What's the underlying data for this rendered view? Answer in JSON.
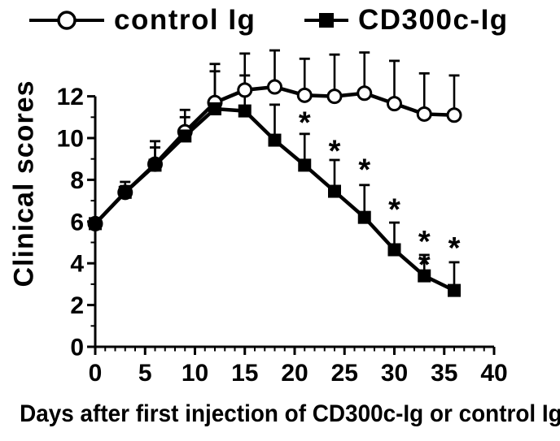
{
  "figure": {
    "background_color": "#ffffff",
    "ink_color": "#000000"
  },
  "legend": {
    "items": [
      {
        "label": "control Ig",
        "marker": "open-circle"
      },
      {
        "label": "CD300c-Ig",
        "marker": "filled-square"
      }
    ]
  },
  "chart_data": {
    "type": "line",
    "title": "",
    "xlabel": "Days after first injection of CD300c-Ig or control Ig",
    "ylabel": "Clinical scores",
    "xlim": [
      0,
      40
    ],
    "ylim": [
      0,
      12
    ],
    "x_major_ticks": [
      0,
      5,
      10,
      15,
      20,
      25,
      30,
      35,
      40
    ],
    "x_minor_step": 1,
    "y_major_ticks": [
      0,
      2,
      4,
      6,
      8,
      10,
      12
    ],
    "y_minor_step": 1,
    "grid": false,
    "legend_position": "top",
    "error_bars": "upper-only",
    "x": [
      0,
      3,
      6,
      9,
      12,
      15,
      18,
      21,
      24,
      27,
      30,
      33,
      36
    ],
    "series": [
      {
        "name": "control Ig",
        "marker": "open-circle",
        "values": [
          5.9,
          7.4,
          8.75,
          10.3,
          11.7,
          12.3,
          12.45,
          12.05,
          12.0,
          12.15,
          11.65,
          11.15,
          11.1
        ],
        "upper_error": [
          0,
          0.5,
          1.1,
          1.05,
          1.85,
          1.75,
          1.75,
          1.75,
          2.0,
          1.95,
          2.05,
          1.95,
          1.9
        ]
      },
      {
        "name": "CD300c-Ig",
        "marker": "filled-square",
        "values": [
          5.9,
          7.4,
          8.7,
          10.1,
          11.4,
          11.3,
          9.9,
          8.7,
          7.45,
          6.2,
          4.65,
          3.4,
          2.7
        ],
        "upper_error": [
          0,
          0.3,
          0.85,
          0.9,
          1.8,
          1.7,
          1.7,
          1.5,
          1.5,
          1.55,
          1.3,
          1.0,
          1.35
        ]
      }
    ],
    "annotations": [
      {
        "x": 21,
        "y": 10.75,
        "text": "*"
      },
      {
        "x": 24,
        "y": 9.4,
        "text": "*"
      },
      {
        "x": 27,
        "y": 8.5,
        "text": "*"
      },
      {
        "x": 30,
        "y": 6.6,
        "text": "*"
      },
      {
        "x": 33,
        "y": 5.05,
        "text": "*"
      },
      {
        "x": 33,
        "y": 3.95,
        "text": "*"
      },
      {
        "x": 36,
        "y": 4.75,
        "text": "*"
      }
    ]
  }
}
